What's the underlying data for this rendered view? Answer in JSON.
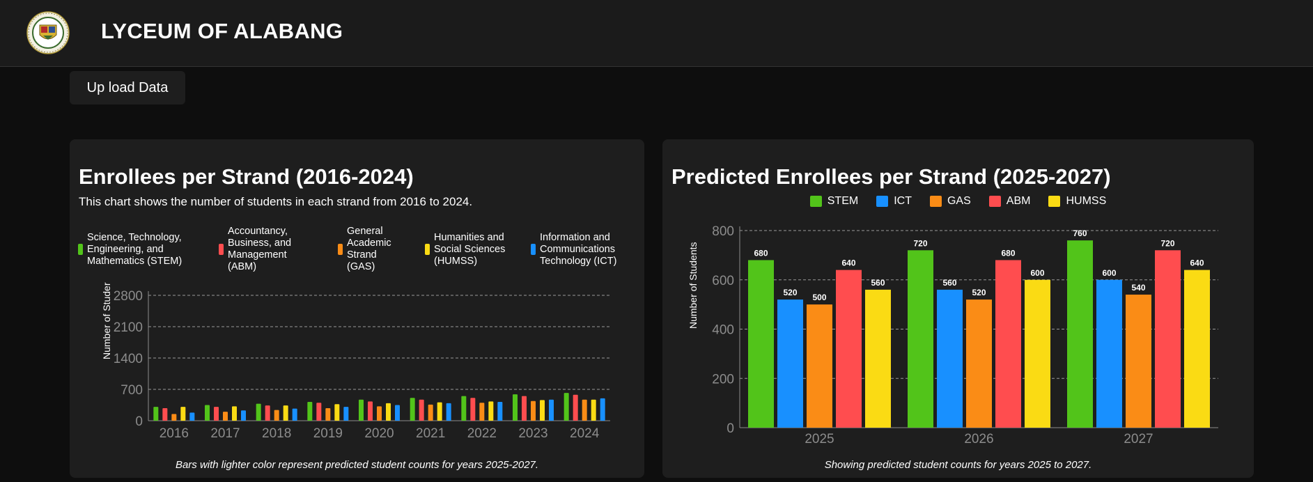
{
  "header": {
    "title": "LYCEUM OF ALABANG",
    "logo": "school-seal"
  },
  "upload_button": {
    "label": "Up load Data"
  },
  "historical": {
    "title": "Enrollees per Strand (2016-2024)",
    "subtitle": "This chart shows the number of students in each strand from 2016 to 2024.",
    "legend": [
      {
        "label": "Science, Technology, Engineering, and Mathematics (STEM)",
        "color": "#52c41a"
      },
      {
        "label": "Accountancy, Business, and Management (ABM)",
        "color": "#ff4d4f"
      },
      {
        "label": "General Academic Strand (GAS)",
        "color": "#fa8c16"
      },
      {
        "label": "Humanities and Social Sciences (HUMSS)",
        "color": "#fadb14"
      },
      {
        "label": "Information and Communications Technology (ICT)",
        "color": "#1890ff"
      }
    ],
    "y_axis_title": "Number of Studer",
    "note": "Bars with lighter color represent predicted student counts for years 2025-2027."
  },
  "predicted": {
    "title": "Predicted Enrollees per Strand (2025-2027)",
    "legend": [
      {
        "label": "STEM",
        "color": "#52c41a"
      },
      {
        "label": "ICT",
        "color": "#1890ff"
      },
      {
        "label": "GAS",
        "color": "#fa8c16"
      },
      {
        "label": "ABM",
        "color": "#ff4d4f"
      },
      {
        "label": "HUMSS",
        "color": "#fadb14"
      }
    ],
    "y_axis_title": "Number of Students",
    "note": "Showing predicted student counts for years 2025 to 2027."
  },
  "chart_data": [
    {
      "type": "bar",
      "title": "Enrollees per Strand (2016-2024)",
      "ylabel": "Number of Studer",
      "categories": [
        "2016",
        "2017",
        "2018",
        "2019",
        "2020",
        "2021",
        "2022",
        "2023",
        "2024"
      ],
      "ylim": [
        0,
        2800
      ],
      "yticks": [
        0,
        700,
        1400,
        2100,
        2800
      ],
      "grid": true,
      "legend_position": "top",
      "series": [
        {
          "name": "Science, Technology, Engineering, and Mathematics (STEM)",
          "color": "#52c41a",
          "values": [
            310,
            350,
            380,
            420,
            470,
            510,
            550,
            590,
            620
          ]
        },
        {
          "name": "Accountancy, Business, and Management (ABM)",
          "color": "#ff4d4f",
          "values": [
            280,
            310,
            340,
            400,
            430,
            470,
            510,
            550,
            580
          ]
        },
        {
          "name": "General Academic Strand (GAS)",
          "color": "#fa8c16",
          "values": [
            150,
            200,
            240,
            280,
            320,
            360,
            400,
            440,
            470
          ]
        },
        {
          "name": "Humanities and Social Sciences (HUMSS)",
          "color": "#fadb14",
          "values": [
            310,
            320,
            340,
            370,
            390,
            410,
            430,
            460,
            470
          ]
        },
        {
          "name": "Information and Communications Technology (ICT)",
          "color": "#1890ff",
          "values": [
            180,
            230,
            270,
            310,
            350,
            390,
            420,
            470,
            500
          ]
        }
      ]
    },
    {
      "type": "bar",
      "title": "Predicted Enrollees per Strand (2025-2027)",
      "ylabel": "Number of Students",
      "categories": [
        "2025",
        "2026",
        "2027"
      ],
      "ylim": [
        0,
        800
      ],
      "yticks": [
        0,
        200,
        400,
        600,
        800
      ],
      "grid": true,
      "legend_position": "top",
      "data_labels": true,
      "series": [
        {
          "name": "STEM",
          "color": "#52c41a",
          "values": [
            680,
            720,
            760
          ]
        },
        {
          "name": "ICT",
          "color": "#1890ff",
          "values": [
            520,
            560,
            600
          ]
        },
        {
          "name": "GAS",
          "color": "#fa8c16",
          "values": [
            500,
            520,
            540
          ]
        },
        {
          "name": "ABM",
          "color": "#ff4d4f",
          "values": [
            640,
            680,
            720
          ]
        },
        {
          "name": "HUMSS",
          "color": "#fadb14",
          "values": [
            560,
            600,
            640
          ]
        }
      ]
    }
  ]
}
